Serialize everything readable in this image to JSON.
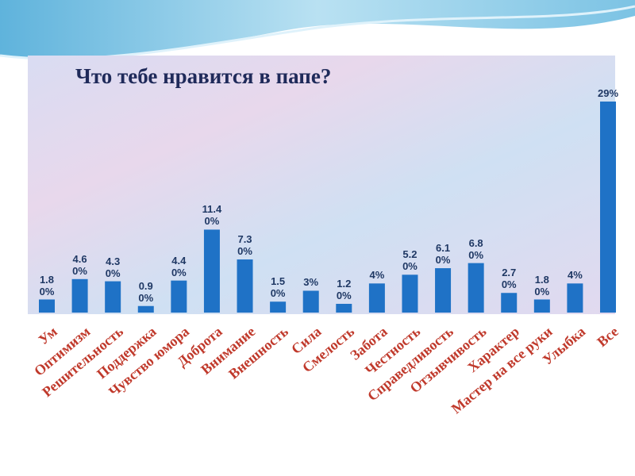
{
  "chart_data": {
    "type": "bar",
    "title": "Что тебе нравится в папе?",
    "categories": [
      "Ум",
      "Оптимизм",
      "Решительность",
      "Поддержка",
      "Чувство юмора",
      "Доброта",
      "Вниманиe",
      "Внешность",
      "Сила",
      "Смелость",
      "Забота",
      "Честность",
      "Справедливость",
      "Отзывчивость",
      "Характер",
      "Мастер на все руки",
      "Улыбка",
      "Все"
    ],
    "values": [
      1.8,
      4.6,
      4.3,
      0.9,
      4.4,
      11.4,
      7.3,
      1.5,
      3,
      1.2,
      4,
      5.2,
      6.1,
      6.8,
      2.7,
      1.8,
      4,
      29
    ],
    "value_labels": [
      "1.80%",
      "4.60%",
      "4.30%",
      "0.90%",
      "4.40%",
      "11.40%",
      "7.30%",
      "1.50%",
      "3%",
      "1.20%",
      "4%",
      "5.20%",
      "6.10%",
      "6.80%",
      "2.70%",
      "1.80%",
      "4%",
      "29%"
    ],
    "color": "#1f72c6"
  }
}
